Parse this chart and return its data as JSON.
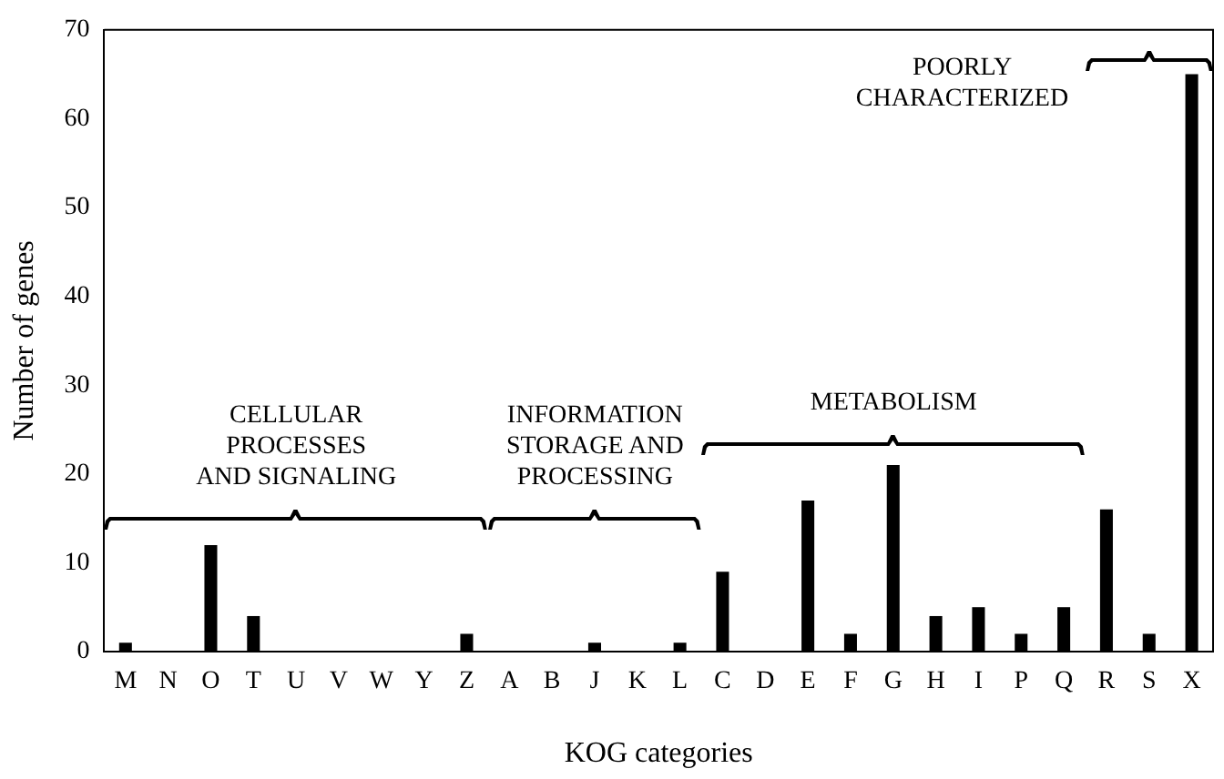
{
  "chart_data": {
    "type": "bar",
    "xlabel": "KOG categories",
    "ylabel": "Number of genes",
    "categories": [
      "M",
      "N",
      "O",
      "T",
      "U",
      "V",
      "W",
      "Y",
      "Z",
      "A",
      "B",
      "J",
      "K",
      "L",
      "C",
      "D",
      "E",
      "F",
      "G",
      "H",
      "I",
      "P",
      "Q",
      "R",
      "S",
      "X"
    ],
    "values": [
      1,
      0,
      12,
      4,
      0,
      0,
      0,
      0,
      2,
      0,
      0,
      1,
      0,
      1,
      9,
      0,
      17,
      2,
      21,
      4,
      5,
      2,
      5,
      16,
      2,
      65
    ],
    "color": "#000000",
    "ylim": [
      0,
      70
    ],
    "yticks": [
      0,
      10,
      20,
      30,
      40,
      50,
      60,
      70
    ],
    "grid": false,
    "legend": false,
    "annotations": [
      "CELLULAR\nPROCESSES\nAND SIGNALING",
      "INFORMATION\nSTORAGE AND\nPROCESSING",
      "METABOLISM",
      "POORLY\nCHARACTERIZED"
    ]
  }
}
